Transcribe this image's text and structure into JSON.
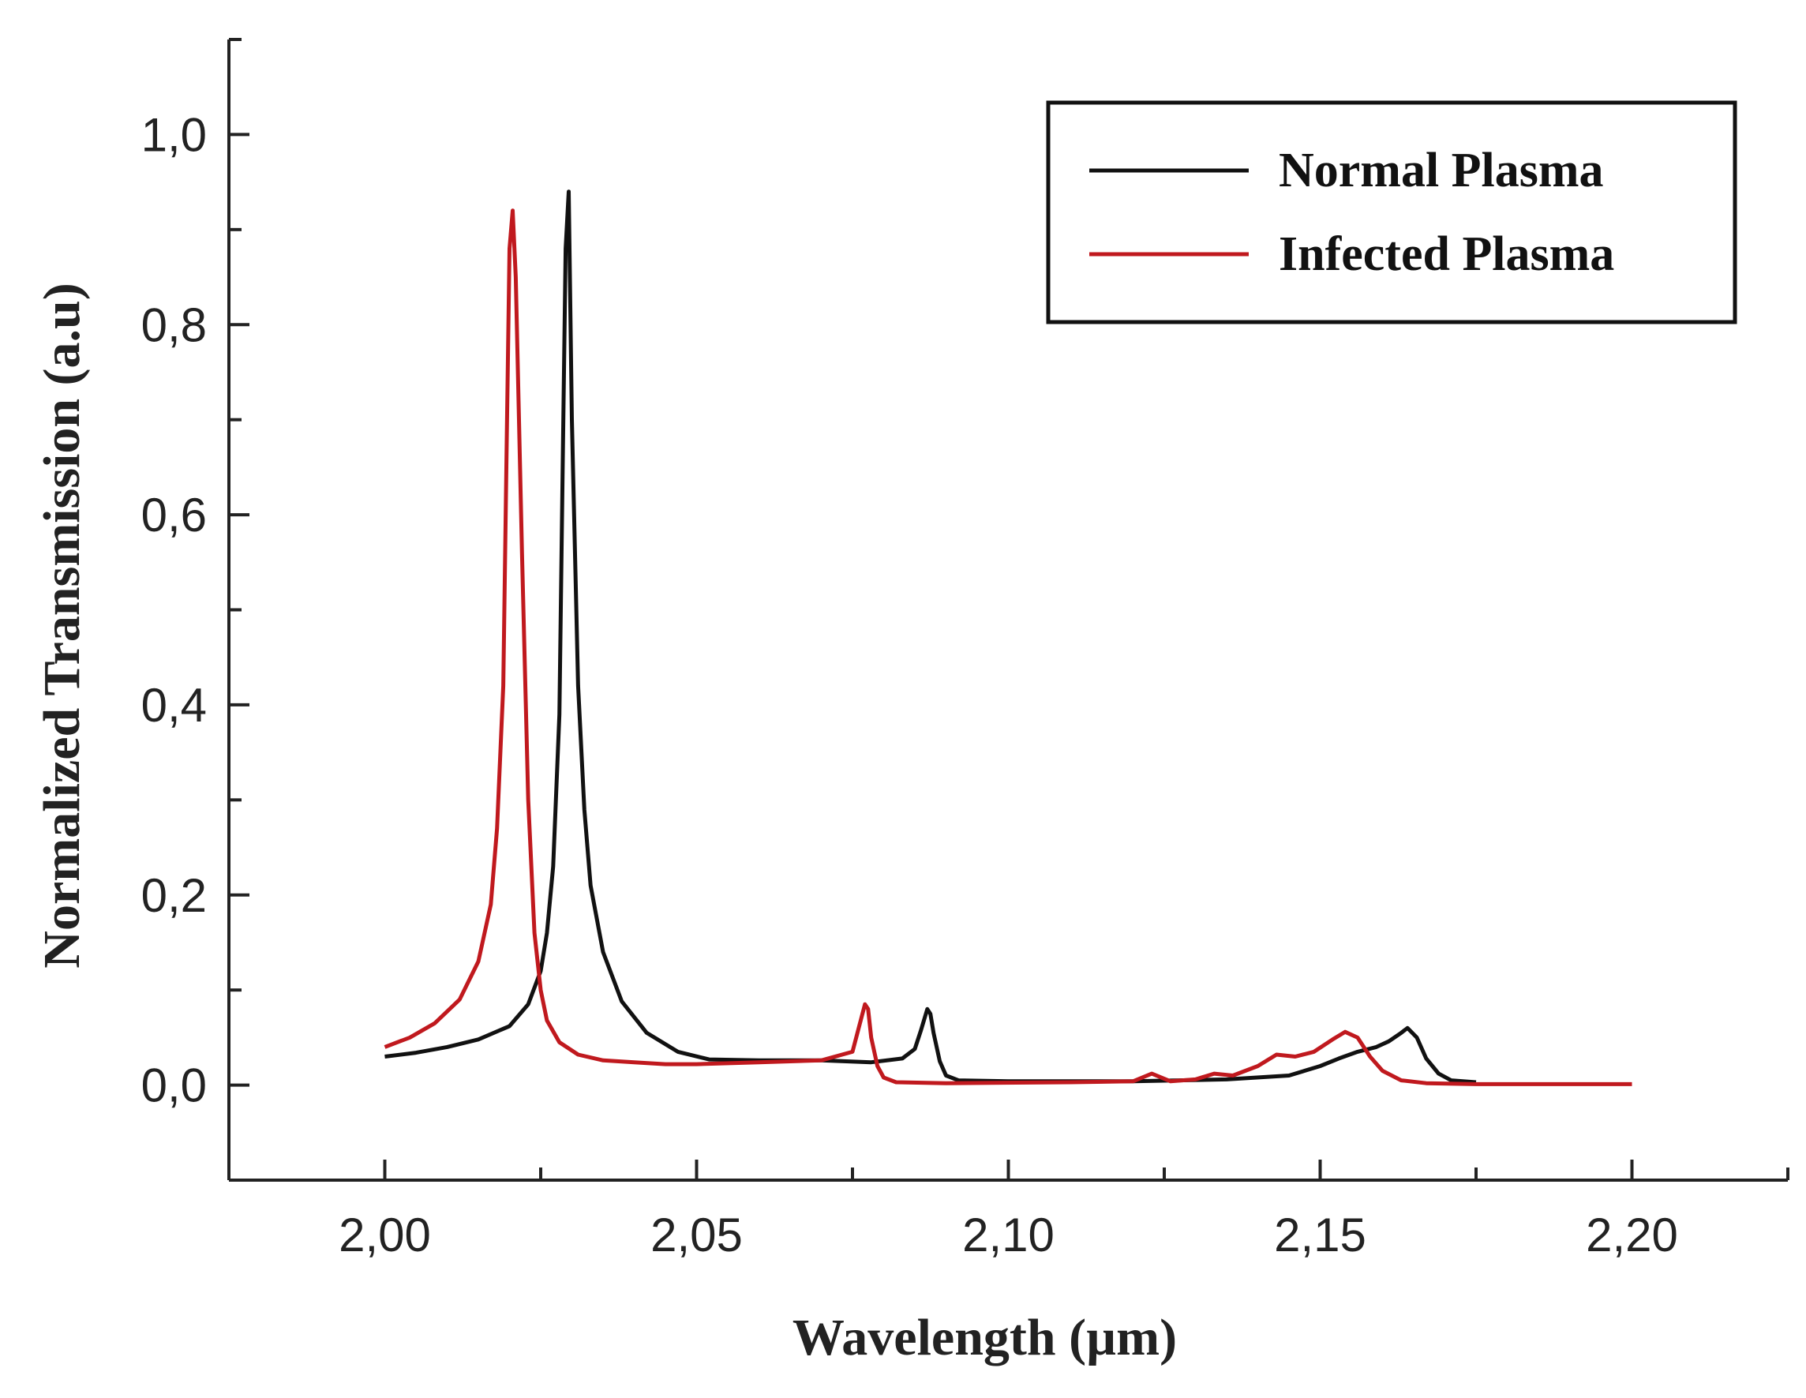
{
  "chart_data": {
    "type": "line",
    "xlabel": "Wavelength (µm)",
    "ylabel": "Normalized Transmission (a.u)",
    "xlim": [
      1.975,
      2.225
    ],
    "ylim": [
      -0.1,
      1.1
    ],
    "xticks": [
      2.0,
      2.05,
      2.1,
      2.15,
      2.2
    ],
    "xtick_labels": [
      "2,00",
      "2,05",
      "2,10",
      "2,15",
      "2,20"
    ],
    "yticks": [
      0.0,
      0.2,
      0.4,
      0.6,
      0.8,
      1.0
    ],
    "ytick_labels": [
      "0,0",
      "0,2",
      "0,4",
      "0,6",
      "0,8",
      "1,0"
    ],
    "grid": false,
    "legend": "top-right",
    "series": [
      {
        "name": "Normal Plasma",
        "color": "#111111",
        "x": [
          2.0,
          2.005,
          2.01,
          2.015,
          2.02,
          2.023,
          2.025,
          2.026,
          2.027,
          2.028,
          2.0285,
          2.029,
          2.0295,
          2.03,
          2.031,
          2.032,
          2.033,
          2.035,
          2.038,
          2.042,
          2.047,
          2.052,
          2.06,
          2.07,
          2.078,
          2.083,
          2.085,
          2.086,
          2.087,
          2.0875,
          2.088,
          2.089,
          2.09,
          2.092,
          2.1,
          2.12,
          2.135,
          2.145,
          2.15,
          2.153,
          2.156,
          2.159,
          2.161,
          2.163,
          2.164,
          2.1655,
          2.167,
          2.169,
          2.171,
          2.175
        ],
        "y": [
          0.03,
          0.034,
          0.04,
          0.048,
          0.062,
          0.085,
          0.12,
          0.16,
          0.23,
          0.39,
          0.64,
          0.88,
          0.94,
          0.7,
          0.42,
          0.29,
          0.21,
          0.14,
          0.088,
          0.055,
          0.035,
          0.027,
          0.026,
          0.026,
          0.024,
          0.028,
          0.038,
          0.058,
          0.08,
          0.075,
          0.055,
          0.025,
          0.01,
          0.005,
          0.004,
          0.004,
          0.006,
          0.01,
          0.02,
          0.028,
          0.035,
          0.04,
          0.046,
          0.055,
          0.06,
          0.05,
          0.028,
          0.012,
          0.005,
          0.003
        ]
      },
      {
        "name": "Infected Plasma",
        "color": "#c0191e",
        "x": [
          2.0,
          2.004,
          2.008,
          2.012,
          2.015,
          2.017,
          2.018,
          2.019,
          2.0195,
          2.02,
          2.0205,
          2.021,
          2.022,
          2.023,
          2.024,
          2.025,
          2.026,
          2.028,
          2.031,
          2.035,
          2.04,
          2.045,
          2.05,
          2.06,
          2.07,
          2.075,
          2.076,
          2.077,
          2.0775,
          2.078,
          2.079,
          2.08,
          2.082,
          2.09,
          2.11,
          2.12,
          2.123,
          2.126,
          2.13,
          2.133,
          2.136,
          2.14,
          2.143,
          2.146,
          2.149,
          2.152,
          2.154,
          2.156,
          2.158,
          2.16,
          2.163,
          2.167,
          2.175,
          2.2
        ],
        "y": [
          0.04,
          0.05,
          0.065,
          0.09,
          0.13,
          0.19,
          0.27,
          0.42,
          0.65,
          0.88,
          0.92,
          0.85,
          0.56,
          0.3,
          0.16,
          0.1,
          0.068,
          0.045,
          0.032,
          0.026,
          0.024,
          0.022,
          0.022,
          0.024,
          0.026,
          0.035,
          0.06,
          0.085,
          0.08,
          0.05,
          0.02,
          0.008,
          0.003,
          0.002,
          0.003,
          0.004,
          0.012,
          0.004,
          0.006,
          0.012,
          0.01,
          0.02,
          0.032,
          0.03,
          0.035,
          0.048,
          0.056,
          0.05,
          0.03,
          0.015,
          0.005,
          0.002,
          0.001,
          0.001
        ]
      }
    ]
  }
}
